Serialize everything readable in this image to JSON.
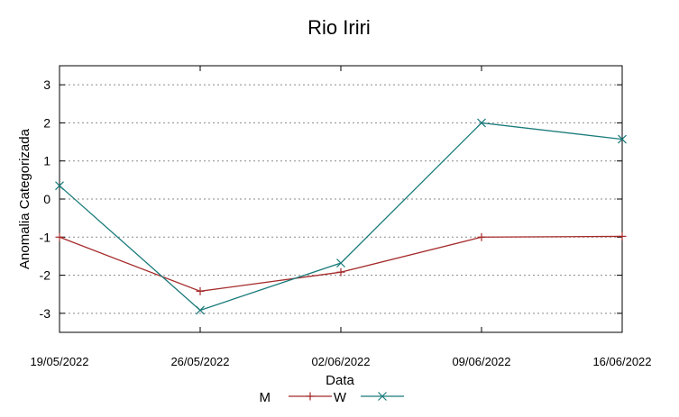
{
  "chart_data": {
    "type": "line",
    "title": "Rio Iriri",
    "xlabel": "Data",
    "ylabel": "Anomalia Categorizada",
    "categories": [
      "19/05/2022",
      "26/05/2022",
      "02/06/2022",
      "09/06/2022",
      "16/06/2022"
    ],
    "ylim": [
      -3.5,
      3.5
    ],
    "yticks": [
      "-3",
      "-2",
      "-1",
      "0",
      "1",
      "2",
      "3"
    ],
    "ytick_values": [
      -3,
      -2,
      -1,
      0,
      1,
      2,
      3
    ],
    "grid": true,
    "legend_position": "bottom-center",
    "series": [
      {
        "name": "M",
        "color": "#a52a2a",
        "marker": "plus",
        "values": [
          -1.0,
          -2.42,
          -1.92,
          -1.0,
          -0.98
        ]
      },
      {
        "name": "W",
        "color": "#1b7b7b",
        "marker": "cross",
        "values": [
          0.35,
          -2.92,
          -1.68,
          2.0,
          1.57
        ]
      }
    ]
  }
}
